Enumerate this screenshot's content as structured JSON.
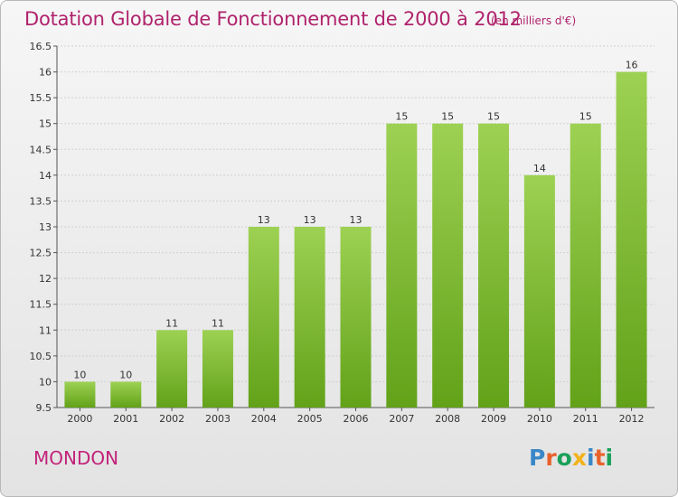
{
  "header": {
    "title": "Dotation Globale de Fonctionnement de 2000 à 2012",
    "subtitle": "(en milliers d'€)"
  },
  "footer": {
    "town": "MONDON",
    "logo_text": "Proxiti",
    "logo_letters": [
      "P",
      "r",
      "o",
      "x",
      "i",
      "t",
      "i"
    ]
  },
  "colors": {
    "title": "#b0226c",
    "bar_top": "#9dd153",
    "bar_bottom": "#62a219",
    "logo_blue": "#3a87c8",
    "logo_orange": "#e8612c",
    "logo_green": "#1aa05a",
    "logo_yellow": "#f2b21b"
  },
  "chart_data": {
    "type": "bar",
    "title": "Dotation Globale de Fonctionnement de 2000 à 2012",
    "subtitle": "(en milliers d'€)",
    "categories": [
      "2000",
      "2001",
      "2002",
      "2003",
      "2004",
      "2005",
      "2006",
      "2007",
      "2008",
      "2009",
      "2010",
      "2011",
      "2012"
    ],
    "values": [
      10,
      10,
      11,
      11,
      13,
      13,
      13,
      15,
      15,
      15,
      14,
      15,
      16
    ],
    "data_labels": [
      "10",
      "10",
      "11",
      "11",
      "13",
      "13",
      "13",
      "15",
      "15",
      "15",
      "14",
      "15",
      "16"
    ],
    "yticks": [
      "9.5",
      "10",
      "10.5",
      "11",
      "11.5",
      "12",
      "12.5",
      "13",
      "13.5",
      "14",
      "14.5",
      "15",
      "15.5",
      "16",
      "16.5"
    ],
    "ylim": [
      9.5,
      16.5
    ],
    "xlabel": "",
    "ylabel": "",
    "grid": true,
    "legend": "none"
  }
}
